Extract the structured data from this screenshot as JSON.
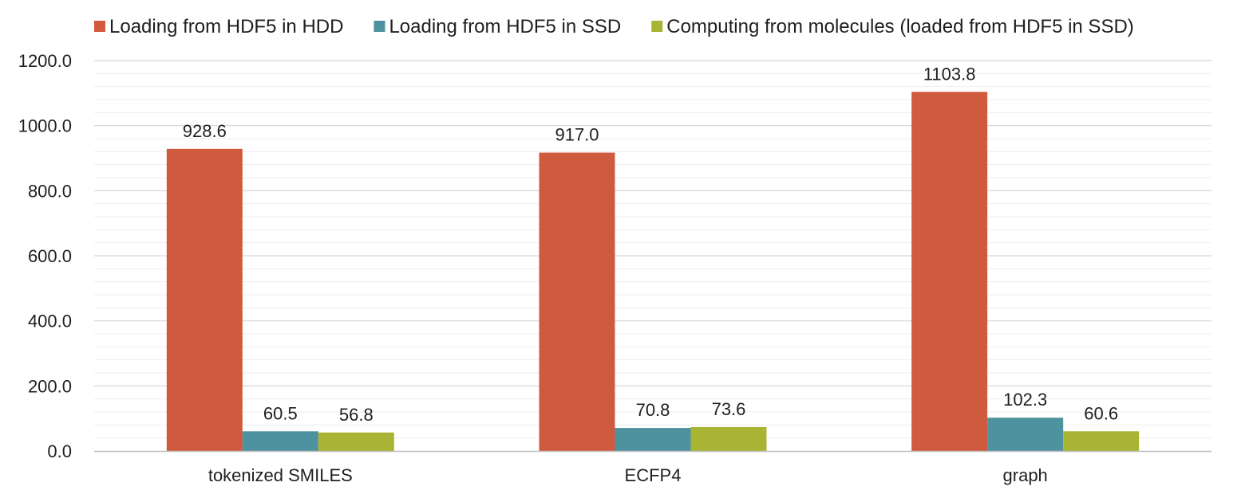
{
  "chart_data": {
    "type": "bar",
    "categories": [
      "tokenized SMILES",
      "ECFP4",
      "graph"
    ],
    "series": [
      {
        "name": "Loading from HDF5 in HDD",
        "values": [
          928.6,
          917.0,
          1103.8
        ],
        "labels": [
          "928.6",
          "917.0",
          "1103.8"
        ],
        "color": "#d05a3e"
      },
      {
        "name": "Loading from HDF5 in SSD",
        "values": [
          60.5,
          70.8,
          102.3
        ],
        "labels": [
          "60.5",
          "70.8",
          "102.3"
        ],
        "color": "#4e919f"
      },
      {
        "name": "Computing from molecules (loaded from HDF5 in SSD)",
        "values": [
          56.8,
          73.6,
          60.6
        ],
        "labels": [
          "56.8",
          "73.6",
          "60.6"
        ],
        "color": "#aab434"
      }
    ],
    "title": "",
    "xlabel": "",
    "ylabel": "",
    "ylim": [
      0,
      1200
    ],
    "yticks": [
      0,
      200,
      400,
      600,
      800,
      1000,
      1200
    ],
    "ytick_labels": [
      "0.0",
      "200.0",
      "400.0",
      "600.0",
      "800.0",
      "1000.0",
      "1200.0"
    ],
    "grid": true,
    "legend_position": "top"
  }
}
